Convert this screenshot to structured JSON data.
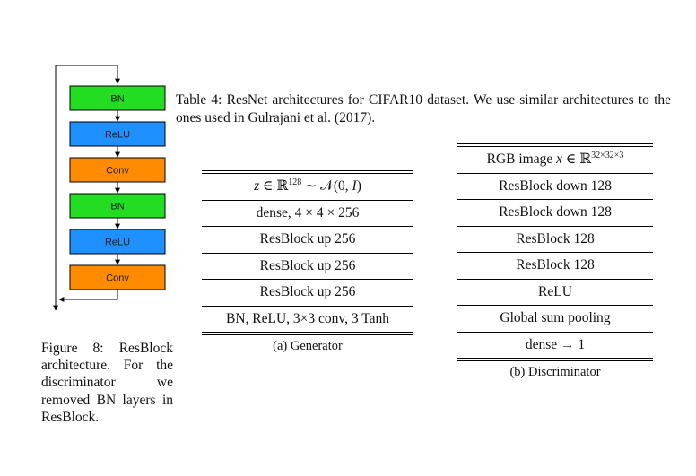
{
  "figure": {
    "blocks": [
      {
        "label": "BN",
        "color": "#22dd22"
      },
      {
        "label": "ReLU",
        "color": "#1e90ff"
      },
      {
        "label": "Conv",
        "color": "#ff8c00"
      },
      {
        "label": "BN",
        "color": "#22dd22"
      },
      {
        "label": "ReLU",
        "color": "#1e90ff"
      },
      {
        "label": "Conv",
        "color": "#ff8c00"
      }
    ],
    "caption_label": "Figure 8:",
    "caption_text": "ResBlock architecture. For the discriminator we removed BN layers in ResBlock."
  },
  "table": {
    "caption_label": "Table 4:",
    "caption_text": "ResNet architectures for CIFAR10 dataset. We use similar architectures to the ones used in Gulrajani et al. (2017).",
    "generator": {
      "header": "z ∈ ℝ128 ∼ 𝒩(0, I)",
      "rows": [
        "dense, 4 × 4 × 256",
        "ResBlock up 256",
        "ResBlock up 256",
        "ResBlock up 256",
        "BN, ReLU, 3×3 conv, 3 Tanh"
      ],
      "caption": "(a) Generator"
    },
    "discriminator": {
      "header": "RGB image x ∈ ℝ32×32×3",
      "rows": [
        "ResBlock down 128",
        "ResBlock down 128",
        "ResBlock 128",
        "ResBlock 128",
        "ReLU",
        "Global sum pooling",
        "dense → 1"
      ],
      "caption": "(b) Discriminator"
    }
  }
}
